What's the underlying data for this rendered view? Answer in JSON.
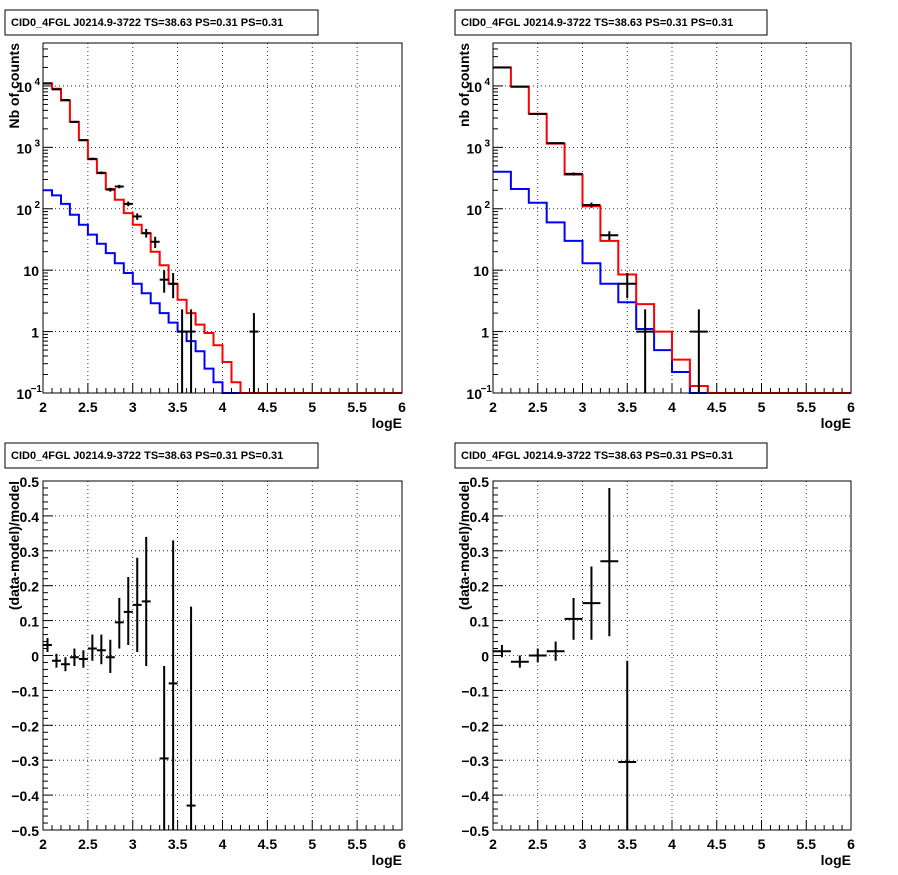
{
  "chart_data": [
    {
      "type": "line",
      "title": "CID0_4FGL J0214.9-3722 TS=38.63 PS=0.31 PS=0.31",
      "xlabel": "logE",
      "ylabel": "Nb of counts",
      "xlim": [
        2,
        6
      ],
      "ylim": [
        0.1,
        50000
      ],
      "yscale": "log",
      "grid": true,
      "xticks": [
        "2",
        "2.5",
        "3",
        "3.5",
        "4",
        "4.5",
        "5",
        "5.5",
        "6"
      ],
      "yticks": [
        {
          "v": 0.1,
          "label": "10",
          "exp": "−1"
        },
        {
          "v": 1,
          "label": "1"
        },
        {
          "v": 10,
          "label": "10"
        },
        {
          "v": 100,
          "label": "10",
          "exp": "2"
        },
        {
          "v": 1000,
          "label": "10",
          "exp": "3"
        },
        {
          "v": 10000,
          "label": "10",
          "exp": "4"
        }
      ],
      "bin_edges": [
        2.0,
        2.1,
        2.2,
        2.3,
        2.4,
        2.5,
        2.6,
        2.7,
        2.8,
        2.9,
        3.0,
        3.1,
        3.2,
        3.3,
        3.4,
        3.5,
        3.6,
        3.7,
        3.8,
        3.9,
        4.0,
        4.1,
        4.2,
        4.3,
        4.4,
        4.5,
        4.6,
        4.7,
        4.8,
        4.9,
        5.0,
        5.1,
        5.2,
        5.3,
        5.4,
        5.5,
        5.6,
        5.7,
        5.8,
        5.9,
        6.0
      ],
      "series": [
        {
          "color": "#0000ff",
          "values": [
            200,
            165,
            120,
            80,
            55,
            38,
            27,
            19,
            13,
            9,
            6,
            4.2,
            2.9,
            2.0,
            1.4,
            1.0,
            0.7,
            0.48,
            0.25,
            0.15,
            0.1,
            0.1,
            0.1,
            0.1,
            0.1,
            0.1,
            0.1,
            0.1,
            0.1,
            0.1,
            0.1,
            0.1,
            0.1,
            0.1,
            0.1,
            0.1,
            0.1,
            0.1,
            0.1,
            0.1
          ]
        },
        {
          "color": "#ff0000",
          "values": [
            11000,
            9000,
            5800,
            2600,
            1300,
            640,
            380,
            210,
            140,
            85,
            55,
            40,
            20,
            12,
            6,
            3.3,
            2.0,
            1.3,
            0.95,
            0.6,
            0.32,
            0.15,
            0.1,
            0.1,
            0.1,
            0.1,
            0.1,
            0.1,
            0.1,
            0.1,
            0.1,
            0.1,
            0.1,
            0.1,
            0.1,
            0.1,
            0.1,
            0.1,
            0.1,
            0.1
          ]
        }
      ],
      "points": [
        {
          "x": 2.05,
          "y": 11000,
          "lo": 10800,
          "hi": 11200
        },
        {
          "x": 2.15,
          "y": 8800,
          "lo": 8600,
          "hi": 9000
        },
        {
          "x": 2.25,
          "y": 5900,
          "lo": 5750,
          "hi": 6050
        },
        {
          "x": 2.35,
          "y": 2600,
          "lo": 2520,
          "hi": 2680
        },
        {
          "x": 2.45,
          "y": 1310,
          "lo": 1270,
          "hi": 1350
        },
        {
          "x": 2.55,
          "y": 650,
          "lo": 625,
          "hi": 675
        },
        {
          "x": 2.65,
          "y": 385,
          "lo": 365,
          "hi": 405
        },
        {
          "x": 2.75,
          "y": 205,
          "lo": 190,
          "hi": 220
        },
        {
          "x": 2.85,
          "y": 230,
          "lo": 215,
          "hi": 245
        },
        {
          "x": 2.95,
          "y": 120,
          "lo": 110,
          "hi": 131
        },
        {
          "x": 3.05,
          "y": 75,
          "lo": 66,
          "hi": 84
        },
        {
          "x": 3.15,
          "y": 40,
          "lo": 34,
          "hi": 47
        },
        {
          "x": 3.25,
          "y": 29,
          "lo": 23,
          "hi": 35
        },
        {
          "x": 3.35,
          "y": 7,
          "lo": 4.3,
          "hi": 10
        },
        {
          "x": 3.45,
          "y": 6,
          "lo": 3.5,
          "hi": 9
        },
        {
          "x": 3.55,
          "y": 1,
          "lo": 0.1,
          "hi": 2.3
        },
        {
          "x": 3.65,
          "y": 1,
          "lo": 0.1,
          "hi": 2.3
        },
        {
          "x": 4.35,
          "y": 1,
          "lo": 0.1,
          "hi": 2.0
        }
      ]
    },
    {
      "type": "line",
      "title": "CID0_4FGL J0214.9-3722 TS=38.63 PS=0.31 PS=0.31",
      "xlabel": "logE",
      "ylabel": "nb of counts",
      "xlim": [
        2,
        6
      ],
      "ylim": [
        0.1,
        50000
      ],
      "yscale": "log",
      "grid": true,
      "xticks": [
        "2",
        "2.5",
        "3",
        "3.5",
        "4",
        "4.5",
        "5",
        "5.5",
        "6"
      ],
      "yticks": [
        {
          "v": 0.1,
          "label": "10",
          "exp": "−1"
        },
        {
          "v": 1,
          "label": "1"
        },
        {
          "v": 10,
          "label": "10"
        },
        {
          "v": 100,
          "label": "10",
          "exp": "2"
        },
        {
          "v": 1000,
          "label": "10",
          "exp": "3"
        },
        {
          "v": 10000,
          "label": "10",
          "exp": "4"
        }
      ],
      "bin_edges": [
        2.0,
        2.2,
        2.4,
        2.6,
        2.8,
        3.0,
        3.2,
        3.4,
        3.6,
        3.8,
        4.0,
        4.2,
        4.4,
        4.6,
        4.8,
        5.0,
        5.2,
        5.4,
        5.6,
        5.8,
        6.0
      ],
      "series": [
        {
          "color": "#0000ff",
          "values": [
            400,
            210,
            125,
            60,
            30,
            13,
            6,
            3,
            1.1,
            0.5,
            0.22,
            0.1,
            0.1,
            0.1,
            0.1,
            0.1,
            0.1,
            0.1,
            0.1,
            0.1
          ]
        },
        {
          "color": "#ff0000",
          "values": [
            20000,
            9800,
            3500,
            1150,
            360,
            110,
            30,
            8.5,
            2.8,
            1.0,
            0.35,
            0.13,
            0.1,
            0.1,
            0.1,
            0.1,
            0.1,
            0.1,
            0.1,
            0.1
          ]
        }
      ],
      "points": [
        {
          "x": 2.1,
          "y": 20000,
          "lo": 19800,
          "hi": 20200
        },
        {
          "x": 2.3,
          "y": 9700,
          "lo": 9550,
          "hi": 9850
        },
        {
          "x": 2.5,
          "y": 3500,
          "lo": 3440,
          "hi": 3560
        },
        {
          "x": 2.7,
          "y": 1170,
          "lo": 1140,
          "hi": 1200
        },
        {
          "x": 2.9,
          "y": 370,
          "lo": 350,
          "hi": 390
        },
        {
          "x": 3.1,
          "y": 115,
          "lo": 104,
          "hi": 126
        },
        {
          "x": 3.3,
          "y": 37,
          "lo": 31,
          "hi": 43
        },
        {
          "x": 3.5,
          "y": 6,
          "lo": 3.5,
          "hi": 9
        },
        {
          "x": 3.7,
          "y": 1,
          "lo": 0.1,
          "hi": 2.3
        },
        {
          "x": 4.3,
          "y": 1,
          "lo": 0.1,
          "hi": 2.3
        }
      ]
    },
    {
      "type": "scatter",
      "title": "CID0_4FGL J0214.9-3722 TS=38.63 PS=0.31 PS=0.31",
      "xlabel": "logE",
      "ylabel": "(data-model)/model",
      "xlim": [
        2,
        6
      ],
      "ylim": [
        -0.5,
        0.5
      ],
      "grid": true,
      "xticks": [
        "2",
        "2.5",
        "3",
        "3.5",
        "4",
        "4.5",
        "5",
        "5.5",
        "6"
      ],
      "yticks": [
        {
          "v": -0.5,
          "label": "−0.5"
        },
        {
          "v": -0.4,
          "label": "−0.4"
        },
        {
          "v": -0.3,
          "label": "−0.3"
        },
        {
          "v": -0.2,
          "label": "−0.2"
        },
        {
          "v": -0.1,
          "label": "−0.1"
        },
        {
          "v": 0,
          "label": "0"
        },
        {
          "v": 0.1,
          "label": "0.1"
        },
        {
          "v": 0.2,
          "label": "0.2"
        },
        {
          "v": 0.3,
          "label": "0.3"
        },
        {
          "v": 0.4,
          "label": "0.4"
        },
        {
          "v": 0.5,
          "label": "0.5"
        }
      ],
      "bin_half_width": 0.05,
      "points": [
        {
          "x": 2.05,
          "y": 0.03,
          "lo": 0.01,
          "hi": 0.05
        },
        {
          "x": 2.15,
          "y": -0.015,
          "lo": -0.035,
          "hi": 0.005
        },
        {
          "x": 2.25,
          "y": -0.025,
          "lo": -0.045,
          "hi": -0.005
        },
        {
          "x": 2.35,
          "y": -0.005,
          "lo": -0.03,
          "hi": 0.02
        },
        {
          "x": 2.45,
          "y": -0.01,
          "lo": -0.035,
          "hi": 0.015
        },
        {
          "x": 2.55,
          "y": 0.02,
          "lo": -0.015,
          "hi": 0.06
        },
        {
          "x": 2.65,
          "y": 0.015,
          "lo": -0.025,
          "hi": 0.06
        },
        {
          "x": 2.75,
          "y": -0.005,
          "lo": -0.05,
          "hi": 0.045
        },
        {
          "x": 2.85,
          "y": 0.095,
          "lo": 0.02,
          "hi": 0.165
        },
        {
          "x": 2.95,
          "y": 0.125,
          "lo": 0.03,
          "hi": 0.225
        },
        {
          "x": 3.05,
          "y": 0.145,
          "lo": 0.01,
          "hi": 0.28
        },
        {
          "x": 3.15,
          "y": 0.155,
          "lo": -0.03,
          "hi": 0.34
        },
        {
          "x": 3.35,
          "y": -0.295,
          "lo": -0.5,
          "hi": -0.03
        },
        {
          "x": 3.45,
          "y": -0.08,
          "lo": -0.5,
          "hi": 0.33
        },
        {
          "x": 3.65,
          "y": -0.43,
          "lo": -0.5,
          "hi": 0.14
        }
      ]
    },
    {
      "type": "scatter",
      "title": "CID0_4FGL J0214.9-3722 TS=38.63 PS=0.31 PS=0.31",
      "xlabel": "logE",
      "ylabel": "(data-model)/model",
      "xlim": [
        2,
        6
      ],
      "ylim": [
        -0.5,
        0.5
      ],
      "grid": true,
      "xticks": [
        "2",
        "2.5",
        "3",
        "3.5",
        "4",
        "4.5",
        "5",
        "5.5",
        "6"
      ],
      "yticks": [
        {
          "v": -0.5,
          "label": "−0.5"
        },
        {
          "v": -0.4,
          "label": "−0.4"
        },
        {
          "v": -0.3,
          "label": "−0.3"
        },
        {
          "v": -0.2,
          "label": "−0.2"
        },
        {
          "v": -0.1,
          "label": "−0.1"
        },
        {
          "v": 0,
          "label": "0"
        },
        {
          "v": 0.1,
          "label": "0.1"
        },
        {
          "v": 0.2,
          "label": "0.2"
        },
        {
          "v": 0.3,
          "label": "0.3"
        },
        {
          "v": 0.4,
          "label": "0.4"
        },
        {
          "v": 0.5,
          "label": "0.5"
        }
      ],
      "bin_half_width": 0.1,
      "points": [
        {
          "x": 2.1,
          "y": 0.012,
          "lo": -0.005,
          "hi": 0.03
        },
        {
          "x": 2.3,
          "y": -0.018,
          "lo": -0.035,
          "hi": 0.0
        },
        {
          "x": 2.5,
          "y": 0.0,
          "lo": -0.02,
          "hi": 0.02
        },
        {
          "x": 2.7,
          "y": 0.012,
          "lo": -0.015,
          "hi": 0.04
        },
        {
          "x": 2.9,
          "y": 0.105,
          "lo": 0.045,
          "hi": 0.165
        },
        {
          "x": 3.1,
          "y": 0.15,
          "lo": 0.045,
          "hi": 0.255
        },
        {
          "x": 3.3,
          "y": 0.27,
          "lo": 0.055,
          "hi": 0.48
        },
        {
          "x": 3.5,
          "y": -0.305,
          "lo": -0.5,
          "hi": -0.015
        }
      ]
    }
  ]
}
